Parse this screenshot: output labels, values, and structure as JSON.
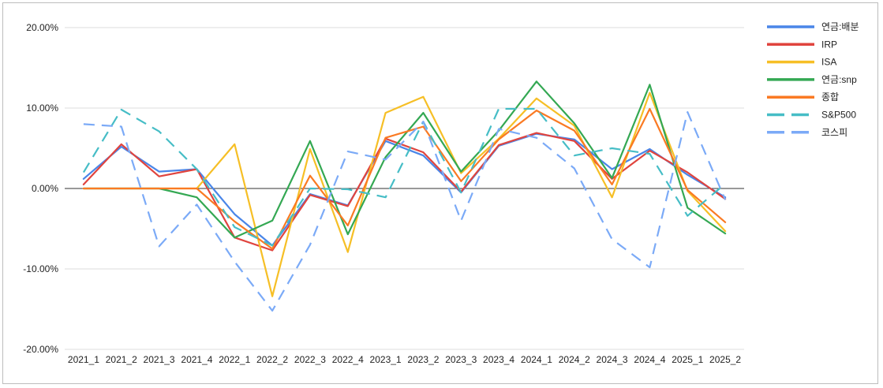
{
  "chart_data": {
    "type": "line",
    "title": "",
    "xlabel": "",
    "ylabel": "",
    "categories": [
      "2021_1",
      "2021_2",
      "2021_3",
      "2021_4",
      "2022_1",
      "2022_2",
      "2022_3",
      "2022_4",
      "2023_1",
      "2023_2",
      "2023_3",
      "2023_4",
      "2024_1",
      "2024_2",
      "2024_3",
      "2024_4",
      "2025_1",
      "2025_2"
    ],
    "ylim": [
      -0.2,
      0.2
    ],
    "yticks": [
      {
        "value": 0.2,
        "label": "20.00%"
      },
      {
        "value": 0.1,
        "label": "10.00%"
      },
      {
        "value": 0.0,
        "label": "0.00%"
      },
      {
        "value": -0.1,
        "label": "-10.00%"
      },
      {
        "value": -0.2,
        "label": "-20.00%"
      }
    ],
    "grid": true,
    "legend_position": "right",
    "series": [
      {
        "name": "연금:배분",
        "color": "#4a86e8",
        "dash": "solid",
        "values": [
          0.012,
          0.052,
          0.021,
          0.024,
          -0.032,
          -0.071,
          -0.007,
          -0.021,
          0.059,
          0.041,
          -0.005,
          0.053,
          0.068,
          0.061,
          0.024,
          0.049,
          0.017,
          -0.011
        ]
      },
      {
        "name": "IRP",
        "color": "#e0443e",
        "dash": "solid",
        "values": [
          0.005,
          0.055,
          0.015,
          0.024,
          -0.061,
          -0.077,
          -0.008,
          -0.022,
          0.062,
          0.045,
          -0.004,
          0.054,
          0.069,
          0.059,
          0.012,
          0.047,
          0.02,
          -0.013
        ]
      },
      {
        "name": "ISA",
        "color": "#f6bf26",
        "dash": "solid",
        "values": [
          0.0,
          0.0,
          0.0,
          0.0,
          0.055,
          -0.134,
          0.049,
          -0.079,
          0.094,
          0.114,
          0.019,
          0.062,
          0.112,
          0.078,
          -0.011,
          0.119,
          -0.003,
          -0.053
        ]
      },
      {
        "name": "연금:snp",
        "color": "#34a853",
        "dash": "solid",
        "values": [
          0.0,
          0.0,
          0.0,
          -0.011,
          -0.061,
          -0.04,
          0.059,
          -0.057,
          0.039,
          0.094,
          0.021,
          0.072,
          0.133,
          0.081,
          0.013,
          0.129,
          -0.024,
          -0.056
        ]
      },
      {
        "name": "종합",
        "color": "#fa7a23",
        "dash": "solid",
        "values": [
          0.0,
          0.0,
          0.0,
          0.0,
          -0.041,
          -0.075,
          0.016,
          -0.046,
          0.063,
          0.077,
          0.009,
          0.061,
          0.097,
          0.072,
          0.005,
          0.099,
          -0.002,
          -0.042
        ]
      },
      {
        "name": "S&P500",
        "color": "#46bdc6",
        "dash": "dashed",
        "values": [
          0.02,
          0.098,
          0.071,
          0.024,
          -0.048,
          -0.071,
          0.0,
          -0.001,
          -0.011,
          0.083,
          -0.005,
          0.099,
          0.099,
          0.041,
          0.05,
          0.043,
          -0.034,
          0.006
        ]
      },
      {
        "name": "코스피",
        "color": "#7baaf7",
        "dash": "dashed",
        "values": [
          0.08,
          0.077,
          -0.072,
          -0.02,
          -0.091,
          -0.152,
          -0.07,
          0.046,
          0.036,
          0.083,
          -0.04,
          0.074,
          0.063,
          0.025,
          -0.063,
          -0.098,
          0.095,
          -0.014
        ]
      }
    ]
  }
}
